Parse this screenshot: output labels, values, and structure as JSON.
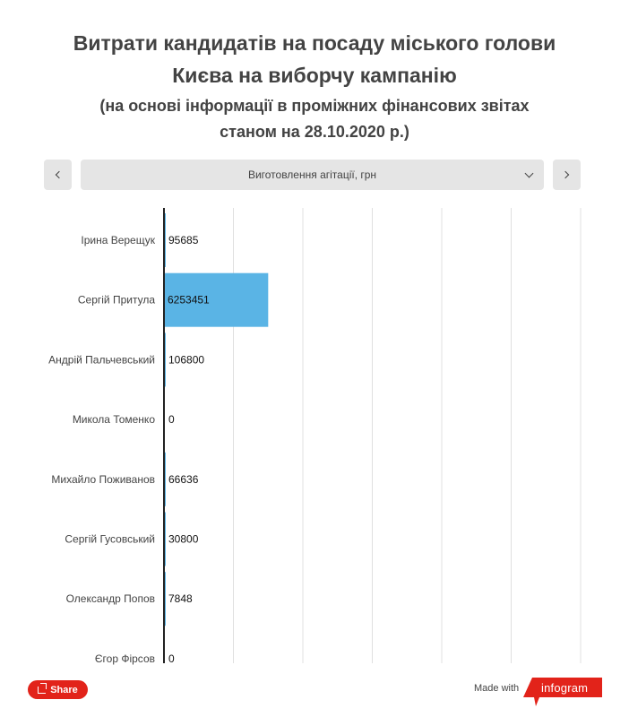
{
  "header": {
    "title_line1": "Витрати кандидатів на посаду міського голови",
    "title_line2": "Києва на виборчу кампанію",
    "subtitle_line1": "(на основі інформації в проміжних фінансових звітах",
    "subtitle_line2": "станом на 28.10.2020 р.)"
  },
  "controls": {
    "selected_metric": "Виготовлення агітації, грн",
    "prev_icon": "chevron-left-icon",
    "next_icon": "chevron-right-icon",
    "dropdown_icon": "chevron-down-icon"
  },
  "chart_data": {
    "type": "bar",
    "orientation": "horizontal",
    "categories": [
      "Ірина Верещук",
      "Сергій Притула",
      "Андрій Пальчевський",
      "Микола Томенко",
      "Михайло Поживанов",
      "Сергій Гусовський",
      "Олександр Попов",
      "Єгор Фірсов"
    ],
    "values": [
      95685,
      6253451,
      106800,
      0,
      66636,
      30800,
      7848,
      0
    ],
    "value_labels": [
      "95685",
      "6253451",
      "106800",
      "0",
      "66636",
      "30800",
      "7848",
      "0"
    ],
    "xlim": [
      0,
      25000000
    ],
    "grid": true,
    "bar_color": "#5ab4e5"
  },
  "footer": {
    "share_label": "Share",
    "made_with": "Made with",
    "brand": "infogram",
    "brand_color": "#e2231a"
  }
}
